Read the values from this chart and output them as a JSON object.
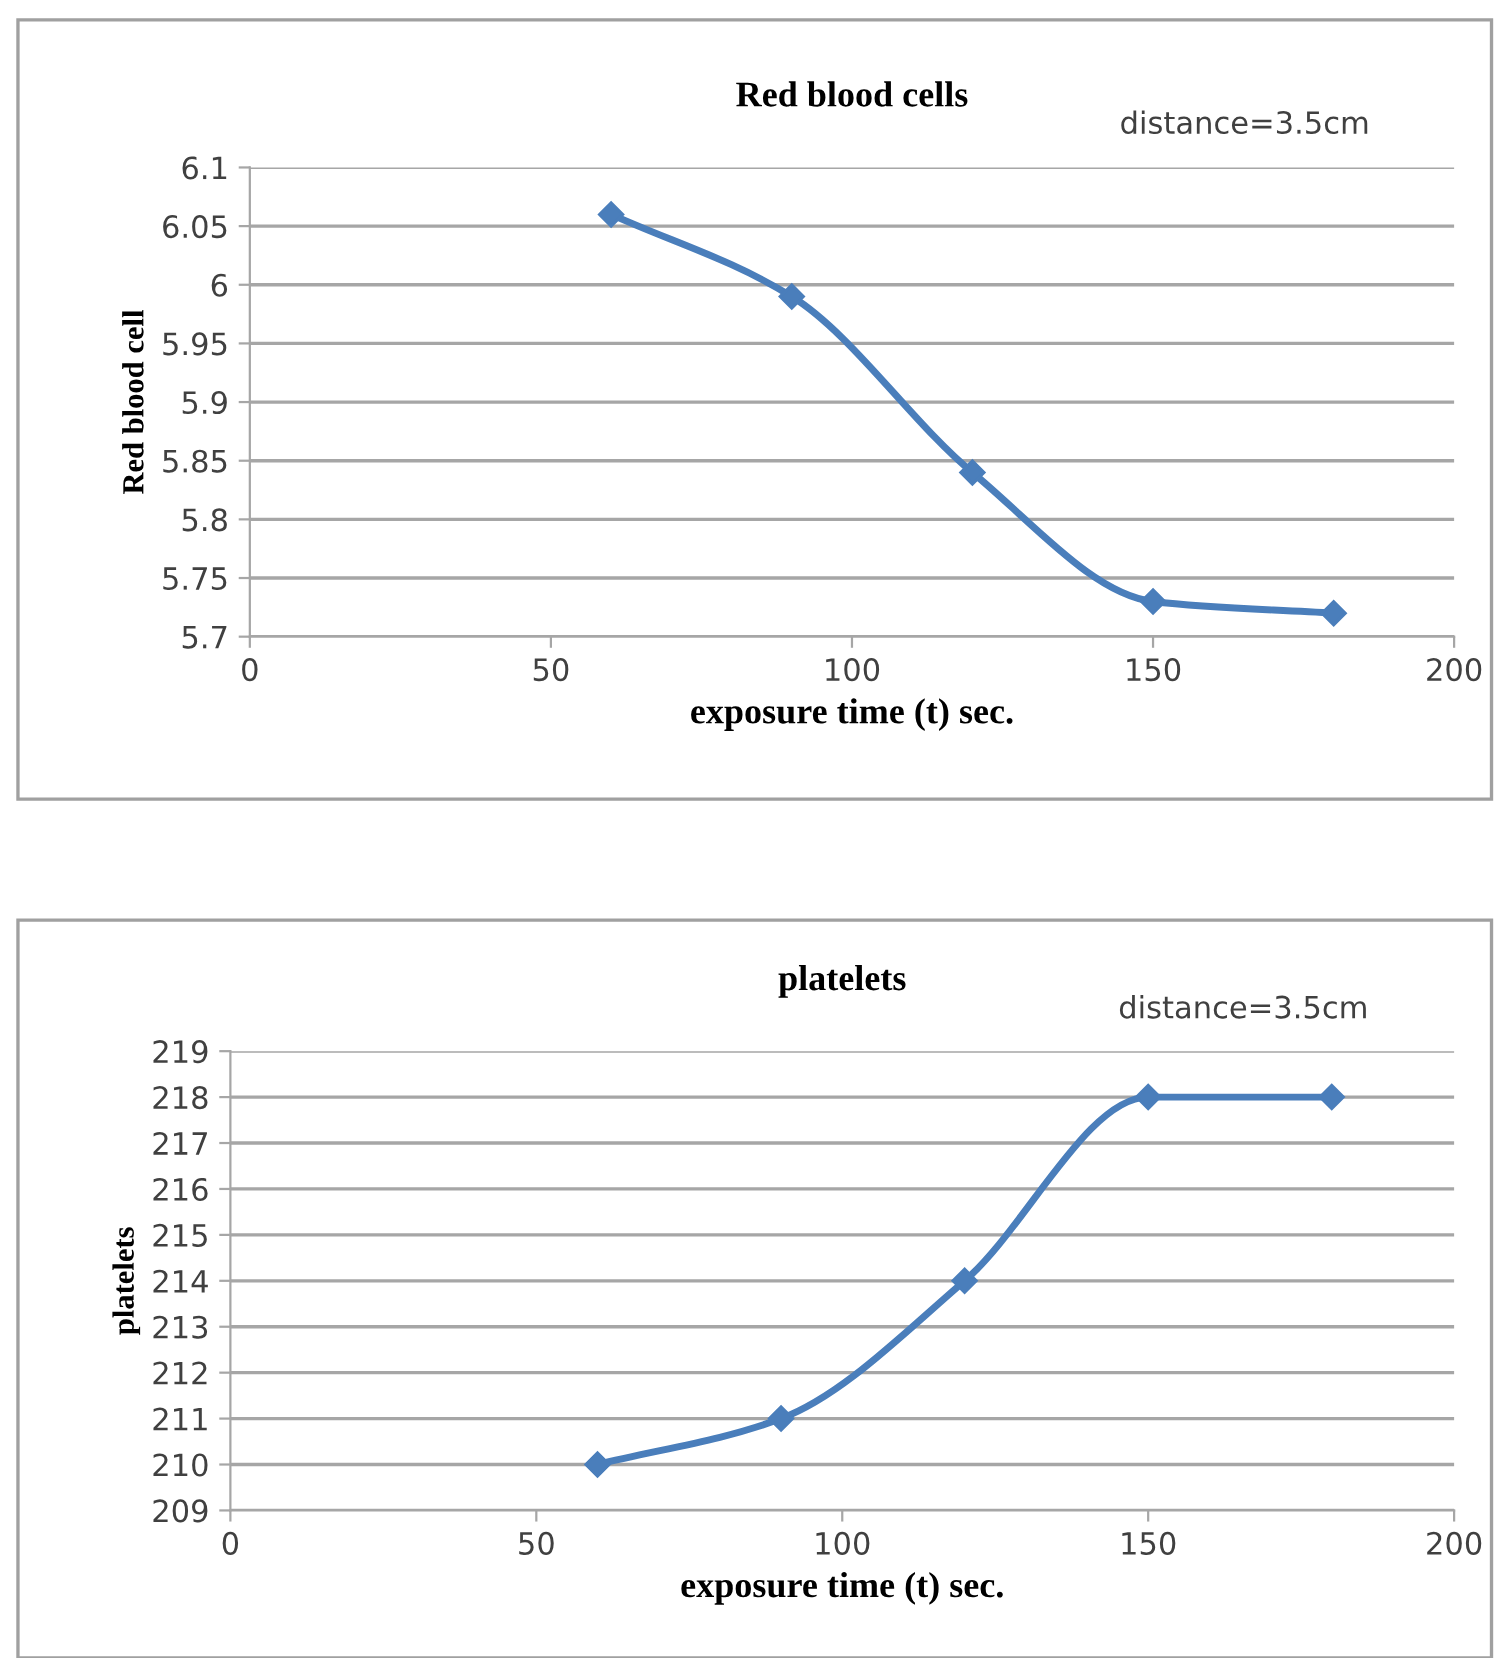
{
  "chart_data": [
    {
      "type": "line",
      "title": "Red blood cells",
      "xlabel": "exposure time (t) sec.",
      "ylabel": "Red blood cell",
      "annotations": [
        "distance=3.5cm"
      ],
      "x": [
        60,
        90,
        120,
        150,
        180
      ],
      "series": [
        {
          "color": "#4a7ebb",
          "values": [
            6.06,
            5.99,
            5.84,
            5.73,
            5.72
          ]
        }
      ],
      "xlim": [
        0,
        200
      ],
      "xticks": [
        0,
        50,
        100,
        150,
        200
      ],
      "ylim": [
        5.7,
        6.1
      ],
      "yticks": [
        5.7,
        5.75,
        5.8,
        5.85,
        5.9,
        5.95,
        6,
        6.05,
        6.1
      ],
      "grid": "y",
      "legend": false,
      "marker": "diamond",
      "line_style": "solid"
    },
    {
      "type": "line",
      "title": "platelets",
      "xlabel": "exposure time (t) sec.",
      "ylabel": "platelets",
      "annotations": [
        "distance=3.5cm"
      ],
      "x": [
        60,
        90,
        120,
        150,
        180
      ],
      "series": [
        {
          "color": "#4a7ebb",
          "values": [
            210,
            211,
            214,
            218,
            218
          ]
        }
      ],
      "xlim": [
        0,
        200
      ],
      "xticks": [
        0,
        50,
        100,
        150,
        200
      ],
      "ylim": [
        209,
        219
      ],
      "yticks": [
        209,
        210,
        211,
        212,
        213,
        214,
        215,
        216,
        217,
        218,
        219
      ],
      "grid": "y",
      "legend": false,
      "marker": "diamond",
      "line_style": "solid"
    }
  ]
}
